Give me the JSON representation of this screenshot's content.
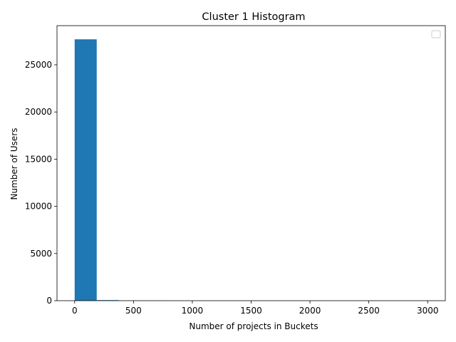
{
  "chart_data": {
    "type": "bar",
    "title": "Cluster 1 Histogram",
    "xlabel": "Number of projects in Buckets",
    "ylabel": "Number of Users",
    "xlim": [
      -150,
      3150
    ],
    "ylim": [
      0,
      29150
    ],
    "x_ticks": [
      0,
      500,
      1000,
      1500,
      2000,
      2500,
      3000
    ],
    "x_tick_labels": [
      "0",
      "500",
      "1000",
      "1500",
      "2000",
      "2500",
      "3000"
    ],
    "y_ticks": [
      0,
      5000,
      10000,
      15000,
      20000,
      25000
    ],
    "y_tick_labels": [
      "0",
      "5000",
      "10000",
      "15000",
      "20000",
      "25000"
    ],
    "bins": [
      {
        "start": 0,
        "end": 187.5,
        "count": 27700
      },
      {
        "start": 187.5,
        "end": 375,
        "count": 60
      },
      {
        "start": 375,
        "end": 562.5,
        "count": 8
      },
      {
        "start": 562.5,
        "end": 750,
        "count": 3
      },
      {
        "start": 750,
        "end": 937.5,
        "count": 1
      },
      {
        "start": 937.5,
        "end": 1125,
        "count": 1
      },
      {
        "start": 1125,
        "end": 1312.5,
        "count": 0
      },
      {
        "start": 1312.5,
        "end": 1500,
        "count": 0
      },
      {
        "start": 1500,
        "end": 1687.5,
        "count": 0
      },
      {
        "start": 1687.5,
        "end": 1875,
        "count": 0
      },
      {
        "start": 1875,
        "end": 2062.5,
        "count": 0
      },
      {
        "start": 2062.5,
        "end": 2250,
        "count": 0
      },
      {
        "start": 2250,
        "end": 2437.5,
        "count": 0
      },
      {
        "start": 2437.5,
        "end": 2625,
        "count": 0
      },
      {
        "start": 2625,
        "end": 2812.5,
        "count": 0
      },
      {
        "start": 2812.5,
        "end": 3000,
        "count": 1
      }
    ],
    "bar_color": "#1f77b4",
    "legend": {
      "entries": [],
      "placement": "top-right"
    },
    "grid": false
  }
}
